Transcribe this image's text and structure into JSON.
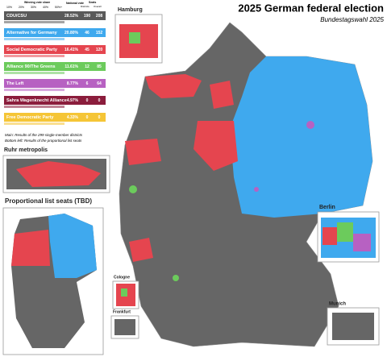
{
  "header": {
    "title": "2025 German federal election",
    "subtitle": "Bundestagswahl 2025"
  },
  "legend": {
    "winning_share": "Winning vote share",
    "national": "National vote",
    "seats": "Seats",
    "districts": "Districts",
    "overall": "Overall",
    "scale": [
      "10%",
      "20%",
      "30%",
      "40%",
      "50%+"
    ],
    "parties": [
      {
        "name": "CDU/CSU",
        "color": "#5a5a5a",
        "vote": "28.52%",
        "districts": 190,
        "overall": 208
      },
      {
        "name": "Alternative for Germany",
        "color": "#3fa9ee",
        "vote": "20.80%",
        "districts": 46,
        "overall": 152
      },
      {
        "name": "Social Democratic Party",
        "color": "#e5454f",
        "vote": "16.41%",
        "districts": 45,
        "overall": 120
      },
      {
        "name": "Alliance 90/The Greens",
        "color": "#6ccb5c",
        "vote": "11.61%",
        "districts": 12,
        "overall": 85
      },
      {
        "name": "The Left",
        "color": "#b761c2",
        "vote": "8.77%",
        "districts": 6,
        "overall": 64
      },
      {
        "name": "Sahra Wagenknecht Alliance",
        "color": "#8b1d3c",
        "vote": "4.97%",
        "districts": 0,
        "overall": 0
      },
      {
        "name": "Free Democratic Party",
        "color": "#f5c536",
        "vote": "4.33%",
        "districts": 0,
        "overall": 0
      }
    ]
  },
  "notes": [
    "Main: Results of the 299 single-member districts",
    "Bottom left: Results of the proportional list seats"
  ],
  "insets": {
    "hamburg": "Hamburg",
    "ruhr": "Ruhr metropolis",
    "proportional": "Proportional list seats (TBD)",
    "berlin": "Berlin",
    "cologne": "Cologne",
    "frankfurt": "Frankfurt",
    "munich": "Munich"
  }
}
